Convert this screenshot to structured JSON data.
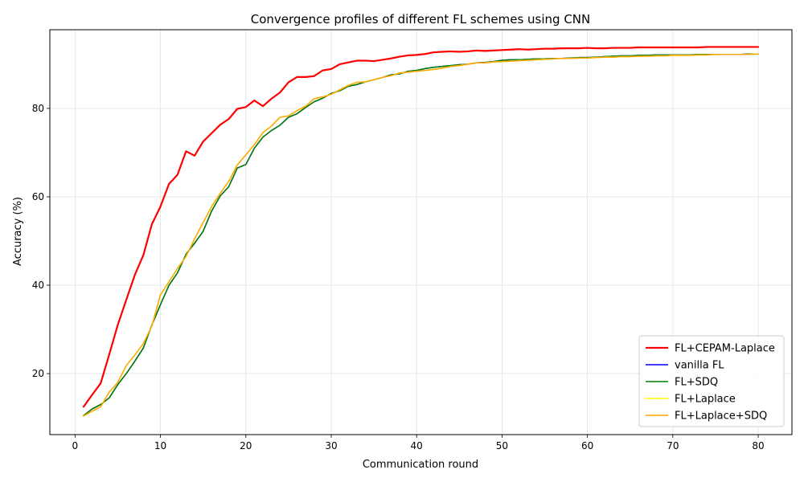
{
  "chart_data": {
    "type": "line",
    "title": "Convergence profiles of different FL schemes using CNN",
    "xlabel": "Communication round",
    "ylabel": "Accuracy (%)",
    "xlim": [
      -2.95,
      83.95
    ],
    "ylim": [
      6.2,
      97.8
    ],
    "xticks": [
      0,
      10,
      20,
      30,
      40,
      50,
      60,
      70,
      80
    ],
    "yticks": [
      20,
      40,
      60,
      80
    ],
    "grid": true,
    "legend_position": "lower-right",
    "x": [
      1,
      2,
      3,
      4,
      5,
      6,
      7,
      8,
      9,
      10,
      11,
      12,
      13,
      14,
      15,
      16,
      17,
      18,
      19,
      20,
      21,
      22,
      23,
      24,
      25,
      26,
      27,
      28,
      29,
      30,
      31,
      32,
      33,
      34,
      35,
      36,
      37,
      38,
      39,
      40,
      41,
      42,
      43,
      44,
      45,
      46,
      47,
      48,
      49,
      50,
      51,
      52,
      53,
      54,
      55,
      56,
      57,
      58,
      59,
      60,
      61,
      62,
      63,
      64,
      65,
      66,
      67,
      68,
      69,
      70,
      71,
      72,
      73,
      74,
      75,
      76,
      77,
      78,
      79,
      80
    ],
    "series": [
      {
        "name": "FL+CEPAM-Laplace",
        "color": "#ff0000",
        "width": 2.2,
        "values": [
          12.5,
          15.2,
          17.8,
          24.3,
          31.0,
          36.7,
          42.3,
          46.8,
          53.8,
          57.8,
          62.9,
          65.0,
          70.3,
          69.3,
          72.5,
          74.4,
          76.3,
          77.6,
          79.9,
          80.3,
          81.8,
          80.5,
          82.2,
          83.6,
          85.9,
          87.1,
          87.1,
          87.3,
          88.6,
          88.9,
          90.0,
          90.4,
          90.8,
          90.8,
          90.7,
          91.0,
          91.3,
          91.7,
          92.0,
          92.1,
          92.3,
          92.7,
          92.8,
          92.9,
          92.8,
          92.9,
          93.1,
          93.0,
          93.1,
          93.2,
          93.3,
          93.4,
          93.3,
          93.4,
          93.5,
          93.5,
          93.6,
          93.6,
          93.6,
          93.7,
          93.6,
          93.6,
          93.7,
          93.7,
          93.7,
          93.8,
          93.8,
          93.8,
          93.8,
          93.8,
          93.8,
          93.8,
          93.8,
          93.9,
          93.9,
          93.9,
          93.9,
          93.9,
          93.9,
          93.9
        ]
      },
      {
        "name": "vanilla FL",
        "color": "#0000ff",
        "width": 1.5,
        "values": [
          10.5,
          12.0,
          13.0,
          14.5,
          17.5,
          20.0,
          22.8,
          25.8,
          31.0,
          35.6,
          40.0,
          42.8,
          47.0,
          49.5,
          52.2,
          56.8,
          60.2,
          62.3,
          66.5,
          67.3,
          71.0,
          73.5,
          75.0,
          76.2,
          78.0,
          78.8,
          80.2,
          81.5,
          82.3,
          83.4,
          84.0,
          85.0,
          85.4,
          86.0,
          86.5,
          87.0,
          87.6,
          87.8,
          88.4,
          88.6,
          89.0,
          89.3,
          89.5,
          89.7,
          89.9,
          90.0,
          90.3,
          90.4,
          90.6,
          90.9,
          91.0,
          91.0,
          91.1,
          91.2,
          91.2,
          91.3,
          91.3,
          91.4,
          91.5,
          91.5,
          91.6,
          91.7,
          91.8,
          91.9,
          91.9,
          92.0,
          92.0,
          92.1,
          92.1,
          92.1,
          92.1,
          92.1,
          92.2,
          92.2,
          92.2,
          92.2,
          92.2,
          92.2,
          92.3,
          92.3
        ]
      },
      {
        "name": "FL+SDQ",
        "color": "#008000",
        "width": 1.5,
        "values": [
          10.5,
          12.0,
          13.0,
          14.5,
          17.5,
          20.0,
          22.8,
          25.8,
          31.0,
          35.6,
          40.0,
          42.8,
          47.0,
          49.5,
          52.2,
          56.8,
          60.2,
          62.3,
          66.5,
          67.3,
          71.0,
          73.5,
          75.0,
          76.2,
          78.0,
          78.8,
          80.2,
          81.5,
          82.3,
          83.4,
          84.0,
          85.0,
          85.4,
          86.0,
          86.5,
          87.0,
          87.6,
          87.8,
          88.4,
          88.6,
          89.0,
          89.3,
          89.5,
          89.7,
          89.9,
          90.0,
          90.3,
          90.4,
          90.6,
          90.9,
          91.0,
          91.0,
          91.1,
          91.2,
          91.2,
          91.3,
          91.3,
          91.4,
          91.5,
          91.5,
          91.6,
          91.7,
          91.8,
          91.9,
          91.9,
          92.0,
          92.0,
          92.1,
          92.1,
          92.1,
          92.1,
          92.1,
          92.2,
          92.2,
          92.2,
          92.2,
          92.2,
          92.2,
          92.3,
          92.3
        ]
      },
      {
        "name": "FL+Laplace",
        "color": "#ffff00",
        "width": 1.5,
        "values": [
          10.4,
          11.5,
          12.5,
          15.8,
          18.0,
          21.8,
          24.2,
          26.8,
          30.8,
          37.8,
          40.8,
          43.8,
          46.5,
          50.5,
          54.2,
          57.8,
          60.8,
          63.5,
          67.2,
          69.5,
          71.8,
          74.5,
          76.0,
          78.0,
          78.3,
          79.5,
          80.5,
          82.2,
          82.6,
          83.2,
          84.2,
          85.2,
          85.9,
          86.0,
          86.5,
          87.0,
          87.4,
          88.0,
          88.2,
          88.4,
          88.6,
          88.8,
          89.1,
          89.5,
          89.7,
          90.0,
          90.3,
          90.3,
          90.5,
          90.6,
          90.7,
          90.8,
          90.9,
          91.0,
          91.1,
          91.2,
          91.3,
          91.3,
          91.4,
          91.4,
          91.5,
          91.6,
          91.6,
          91.7,
          91.7,
          91.8,
          91.8,
          91.9,
          91.9,
          92.0,
          92.0,
          92.0,
          92.1,
          92.1,
          92.2,
          92.2,
          92.2,
          92.2,
          92.2,
          92.3
        ]
      },
      {
        "name": "FL+Laplace+SDQ",
        "color": "#ffa500",
        "width": 1.5,
        "values": [
          10.4,
          11.5,
          12.5,
          15.8,
          18.0,
          21.8,
          24.2,
          26.8,
          30.8,
          37.8,
          40.8,
          43.8,
          46.5,
          50.5,
          54.2,
          57.8,
          60.8,
          63.5,
          67.2,
          69.5,
          71.8,
          74.5,
          76.0,
          78.0,
          78.3,
          79.5,
          80.5,
          82.2,
          82.6,
          83.2,
          84.2,
          85.2,
          85.9,
          86.0,
          86.5,
          87.0,
          87.4,
          88.0,
          88.2,
          88.4,
          88.6,
          88.8,
          89.1,
          89.5,
          89.7,
          90.0,
          90.3,
          90.3,
          90.5,
          90.6,
          90.7,
          90.8,
          90.9,
          91.0,
          91.1,
          91.2,
          91.3,
          91.3,
          91.4,
          91.4,
          91.5,
          91.6,
          91.6,
          91.7,
          91.7,
          91.8,
          91.8,
          91.9,
          91.9,
          92.0,
          92.0,
          92.0,
          92.1,
          92.1,
          92.2,
          92.2,
          92.2,
          92.2,
          92.2,
          92.3
        ]
      }
    ]
  }
}
